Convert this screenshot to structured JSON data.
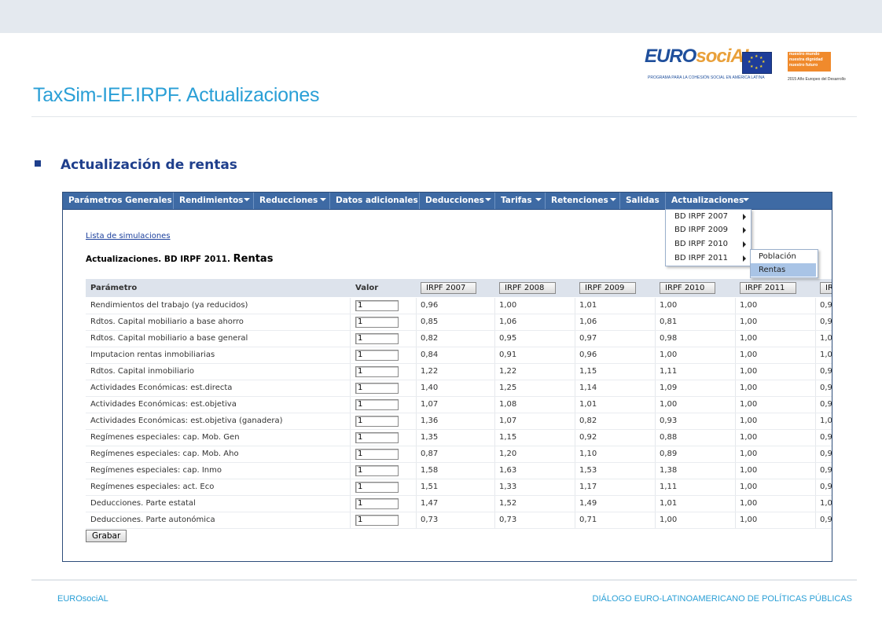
{
  "slide": {
    "title": "TaxSim-IEF.IRPF. Actualizaciones",
    "section": "Actualización de rentas",
    "footer_left": "EUROsociAL",
    "footer_right": "DIÁLOGO EURO-LATINOAMERICANO DE POLÍTICAS PÚBLICAS"
  },
  "logos": {
    "eurosocial_prefix": "EURO",
    "eurosocial_mid": "sociAL",
    "eurosocial_tagline": "PROGRAMA PARA LA COHESIÓN SOCIAL EN AMÉRICA LATINA",
    "nm_lines": [
      "nuestro mundo",
      "nuestra dignidad",
      "nuestro futuro"
    ],
    "nm_year": "2015 Año Europeo del Desarrollo"
  },
  "menu": [
    {
      "label": "Parámetros Generales",
      "arrow": false
    },
    {
      "label": "Rendimientos",
      "arrow": true
    },
    {
      "label": "Reducciones",
      "arrow": true
    },
    {
      "label": "Datos adicionales",
      "arrow": false
    },
    {
      "label": "Deducciones",
      "arrow": true
    },
    {
      "label": "Tarifas",
      "arrow": true
    },
    {
      "label": "Retenciones",
      "arrow": true
    },
    {
      "label": "Salidas",
      "arrow": false
    },
    {
      "label": "Actualizaciones",
      "arrow": true
    }
  ],
  "dropdown": [
    "BD IRPF 2007",
    "BD IRPF 2009",
    "BD IRPF 2010",
    "BD IRPF 2011"
  ],
  "submenu": {
    "items": [
      "Población",
      "Rentas"
    ],
    "active": "Rentas"
  },
  "page": {
    "link": "Lista de simulaciones",
    "heading_prefix": "Actualizaciones. BD IRPF 2011.",
    "heading_suffix": "Rentas",
    "save_label": "Grabar"
  },
  "table": {
    "col_param": "Parámetro",
    "col_valor": "Valor",
    "year_buttons": [
      "IRPF 2007",
      "IRPF 2008",
      "IRPF 2009",
      "IRPF 2010",
      "IRPF 2011",
      "IR"
    ],
    "rows": [
      {
        "param": "Rendimientos del trabajo (ya reducidos)",
        "valor": "1",
        "v": [
          "0,96",
          "1,00",
          "1,01",
          "1,00",
          "1,00",
          "0,9"
        ]
      },
      {
        "param": "Rdtos. Capital mobiliario a base ahorro",
        "valor": "1",
        "v": [
          "0,85",
          "1,06",
          "1,06",
          "0,81",
          "1,00",
          "0,9"
        ]
      },
      {
        "param": "Rdtos. Capital mobiliario a base general",
        "valor": "1",
        "v": [
          "0,82",
          "0,95",
          "0,97",
          "0,98",
          "1,00",
          "1,0"
        ]
      },
      {
        "param": "Imputacion rentas inmobiliarias",
        "valor": "1",
        "v": [
          "0,84",
          "0,91",
          "0,96",
          "1,00",
          "1,00",
          "1,0"
        ]
      },
      {
        "param": "Rdtos. Capital inmobiliario",
        "valor": "1",
        "v": [
          "1,22",
          "1,22",
          "1,15",
          "1,11",
          "1,00",
          "0,9"
        ]
      },
      {
        "param": "Actividades Económicas: est.directa",
        "valor": "1",
        "v": [
          "1,40",
          "1,25",
          "1,14",
          "1,09",
          "1,00",
          "0,9"
        ]
      },
      {
        "param": "Actividades Económicas: est.objetiva",
        "valor": "1",
        "v": [
          "1,07",
          "1,08",
          "1,01",
          "1,00",
          "1,00",
          "0,9"
        ]
      },
      {
        "param": "Actividades Económicas: est.objetiva (ganadera)",
        "valor": "1",
        "v": [
          "1,36",
          "1,07",
          "0,82",
          "0,93",
          "1,00",
          "1,0"
        ]
      },
      {
        "param": "Regímenes especiales: cap. Mob. Gen",
        "valor": "1",
        "v": [
          "1,35",
          "1,15",
          "0,92",
          "0,88",
          "1,00",
          "0,9"
        ]
      },
      {
        "param": "Regímenes especiales: cap. Mob. Aho",
        "valor": "1",
        "v": [
          "0,87",
          "1,20",
          "1,10",
          "0,89",
          "1,00",
          "0,9"
        ]
      },
      {
        "param": "Regímenes especiales: cap. Inmo",
        "valor": "1",
        "v": [
          "1,58",
          "1,63",
          "1,53",
          "1,38",
          "1,00",
          "0,9"
        ]
      },
      {
        "param": "Regímenes especiales: act. Eco",
        "valor": "1",
        "v": [
          "1,51",
          "1,33",
          "1,17",
          "1,11",
          "1,00",
          "0,9"
        ]
      },
      {
        "param": "Deducciones. Parte estatal",
        "valor": "1",
        "v": [
          "1,47",
          "1,52",
          "1,49",
          "1,01",
          "1,00",
          "1,0"
        ]
      },
      {
        "param": "Deducciones. Parte autonómica",
        "valor": "1",
        "v": [
          "0,73",
          "0,73",
          "0,71",
          "1,00",
          "1,00",
          "0,9"
        ]
      }
    ]
  },
  "colors": {
    "accent": "#2a9fd6",
    "menubar": "#3e6aa4",
    "section": "#1f3f8c",
    "submenu_active": "#a9c4e6"
  }
}
